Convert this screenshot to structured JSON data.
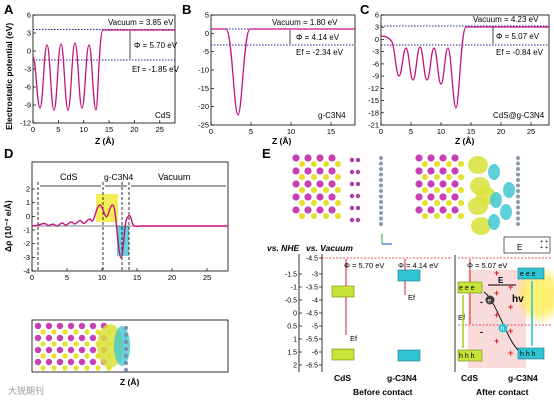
{
  "panels": {
    "A": {
      "letter": "A",
      "material": "CdS",
      "vacuum_label": "Vacuum = 3.85 eV",
      "phi_label": "Φ = 5.70 eV",
      "ef_label": "Ef = -1.85 eV",
      "ylabel": "Electrostatic potential (eV)",
      "xlabel": "Z (Å)",
      "xticks": [
        "0",
        "5",
        "10",
        "15",
        "20",
        "25"
      ],
      "yticks": [
        "6",
        "3",
        "0",
        "-3",
        "-6",
        "-9",
        "-12"
      ],
      "vacuum": 3.85,
      "ef": -1.85,
      "xlim": [
        0,
        28
      ],
      "ylim": [
        -12,
        6
      ]
    },
    "B": {
      "letter": "B",
      "material": "g-C3N4",
      "vacuum_label": "Vacuum = 1.80 eV",
      "phi_label": "Φ = 4.14 eV",
      "ef_label": "Ef = -2.34 eV",
      "xlabel": "Z (Å)",
      "xticks": [
        "0",
        "5",
        "10",
        "15"
      ],
      "yticks": [
        "5",
        "0",
        "-5",
        "-10",
        "-15",
        "-20",
        "-25"
      ],
      "vacuum": 1.8,
      "ef": -2.34,
      "xlim": [
        0,
        18
      ],
      "ylim": [
        -25,
        5
      ]
    },
    "C": {
      "letter": "C",
      "material": "CdS@g-C3N4",
      "vacuum_label": "Vacuum = 4.23 eV",
      "phi_label": "Φ = 5.07 eV",
      "ef_label": "Ef = -0.84 eV",
      "xlabel": "Z (Å)",
      "xticks": [
        "0",
        "5",
        "10",
        "15",
        "20",
        "25"
      ],
      "yticks": [
        "6",
        "3",
        "0",
        "-3",
        "-6",
        "-9",
        "-12",
        "-15",
        "-18",
        "-21"
      ],
      "vacuum": 4.23,
      "ef": -0.84,
      "xlim": [
        0,
        28
      ],
      "ylim": [
        -21,
        6
      ]
    },
    "D": {
      "letter": "D",
      "ylabel": "Δρ (10⁻² e/Å)",
      "xlabel": "Z (Å)",
      "region_cds": "CdS",
      "region_gcn": "g-C3N4",
      "region_vac": "Vacuum",
      "xticks": [
        "0",
        "5",
        "10",
        "15",
        "20",
        "25"
      ],
      "yticks": [
        "2",
        "1",
        "0",
        "-1",
        "-2",
        "-3",
        "-4"
      ],
      "xlim": [
        0,
        28
      ],
      "ylim": [
        -4,
        2
      ]
    },
    "E": {
      "letter": "E",
      "vs_nhe": "vs. NHE",
      "vs_vac": "vs. Vacuum",
      "nhe_ticks": [
        "-1.5",
        "-1",
        "-0.5",
        "0",
        "0.5",
        "1",
        "1.5",
        "2"
      ],
      "vac_ticks": [
        "-4.5",
        "-3",
        "-3.5",
        "-4",
        "-4.5",
        "-5",
        "-5.5",
        "-6",
        "-6.5"
      ],
      "phi_cds": "Φ = 5.70 eV",
      "phi_gcn": "Φ = 4.14 eV",
      "phi_after": "Φ = 5.07 eV",
      "ef": "Ef",
      "e_field": "E",
      "label_cds": "CdS",
      "label_gcn": "g-C3N4",
      "before": "Before contact",
      "after": "After contact",
      "hv": "hv",
      "electrons": "e e e",
      "holes": "h h h",
      "e_symbol": "e",
      "h_symbol": "h",
      "plus": "+",
      "minus": "-"
    }
  },
  "colors": {
    "curve": "#c4117f",
    "dotted": "#1f2a8a",
    "yellow": "#f2ec3a",
    "cyan": "#3fc7d3",
    "red": "#d62020",
    "cds_band": "#c8e33a",
    "gcn_band": "#2ec4d4"
  },
  "watermark": "大锐期刊"
}
